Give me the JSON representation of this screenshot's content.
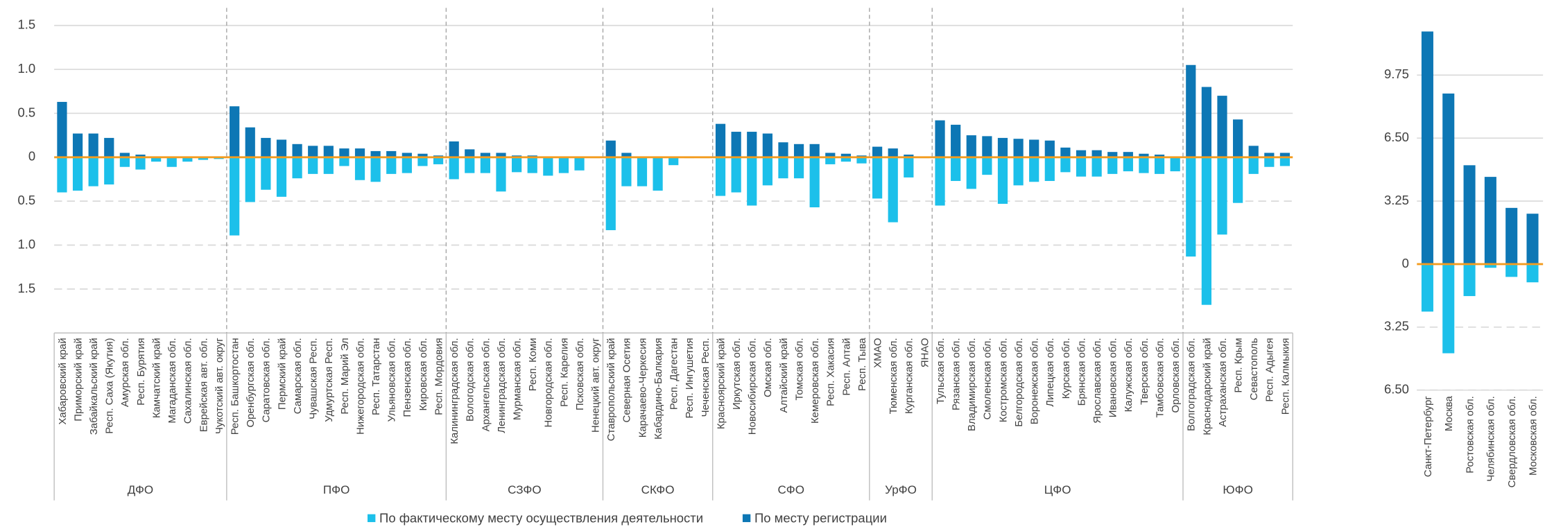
{
  "chart_data": [
    {
      "type": "bar",
      "groups": [
        {
          "label": "ДФО",
          "categories": [
            "Хабаровский край",
            "Приморский край",
            "Забайкальский край",
            "Респ. Саха (Якутия)",
            "Амурская обл.",
            "Респ. Бурятия",
            "Камчатский край",
            "Магаданская обл.",
            "Сахалинская обл.",
            "Еврейская авт. обл.",
            "Чукотский авт. округ"
          ]
        },
        {
          "label": "ПФО",
          "categories": [
            "Респ. Башкортостан",
            "Оренбургская обл.",
            "Саратовская обл.",
            "Пермский край",
            "Самарская обл.",
            "Чувашская Респ.",
            "Удмуртская Респ.",
            "Респ. Марий Эл",
            "Нижегородская обл.",
            "Респ. Татарстан",
            "Ульяновская обл.",
            "Пензенская обл.",
            "Кировская обл.",
            "Респ. Мордовия"
          ]
        },
        {
          "label": "СЗФО",
          "categories": [
            "Калининградская обл.",
            "Вологодская обл.",
            "Архангельская обл.",
            "Ленинградская обл.",
            "Мурманская обл.",
            "Респ. Коми",
            "Новгородская обл.",
            "Респ. Карелия",
            "Псковская обл.",
            "Ненецкий авт. округ"
          ]
        },
        {
          "label": "СКФО",
          "categories": [
            "Ставропольский край",
            "Северная Осетия",
            "Карачаево-Черкесия",
            "Кабардино-Балкария",
            "Респ. Дагестан",
            "Респ. Ингушетия",
            "Чеченская Респ."
          ]
        },
        {
          "label": "СФО",
          "categories": [
            "Красноярский край",
            "Иркутская обл.",
            "Новосибирская обл.",
            "Омская обл.",
            "Алтайский край",
            "Томская обл.",
            "Кемеровская обл.",
            "Респ. Хакасия",
            "Респ. Алтай",
            "Респ. Тыва"
          ]
        },
        {
          "label": "УрФО",
          "categories": [
            "ХМАО",
            "Тюменская обл.",
            "Курганская обл.",
            "ЯНАО"
          ]
        },
        {
          "label": "ЦФО",
          "categories": [
            "Тульская обл.",
            "Рязанская обл.",
            "Владимирская обл.",
            "Смоленская обл.",
            "Костромская обл.",
            "Белгородская обл.",
            "Воронежская обл.",
            "Липецкая обл.",
            "Курская обл.",
            "Брянская обл.",
            "Ярославская обл.",
            "Ивановская обл.",
            "Калужская обл.",
            "Тверская обл.",
            "Тамбовская обл.",
            "Орловская обл."
          ]
        },
        {
          "label": "ЮФО",
          "categories": [
            "Волгоградская обл.",
            "Краснодарский край",
            "Астраханская обл.",
            "Респ. Крым",
            "Севастополь",
            "Респ. Адыгея",
            "Респ. Калмыкия"
          ]
        }
      ],
      "series": [
        {
          "name": "По фактическому месту осуществления деятельности",
          "color": "#1cc0ea",
          "values": [
            [
              -0.4,
              -0.38,
              -0.33,
              -0.31,
              -0.11,
              -0.14,
              -0.05,
              -0.11,
              -0.05,
              -0.03,
              -0.02
            ],
            [
              -0.89,
              -0.51,
              -0.37,
              -0.45,
              -0.24,
              -0.19,
              -0.19,
              -0.1,
              -0.26,
              -0.28,
              -0.19,
              -0.18,
              -0.1,
              -0.08
            ],
            [
              -0.25,
              -0.18,
              -0.18,
              -0.39,
              -0.17,
              -0.18,
              -0.21,
              -0.18,
              -0.15,
              -0.01
            ],
            [
              -0.83,
              -0.33,
              -0.33,
              -0.38,
              -0.09,
              -0.01,
              -0.01
            ],
            [
              -0.44,
              -0.4,
              -0.55,
              -0.32,
              -0.24,
              -0.24,
              -0.57,
              -0.08,
              -0.05,
              -0.07
            ],
            [
              -0.47,
              -0.74,
              -0.23,
              -0.01
            ],
            [
              -0.55,
              -0.27,
              -0.36,
              -0.2,
              -0.53,
              -0.32,
              -0.28,
              -0.27,
              -0.17,
              -0.22,
              -0.22,
              -0.19,
              -0.16,
              -0.18,
              -0.19,
              -0.16
            ],
            [
              -1.13,
              -1.68,
              -0.88,
              -0.52,
              -0.19,
              -0.11,
              -0.1
            ]
          ]
        },
        {
          "name": "По месту регистрации",
          "color": "#0d77b5",
          "values": [
            [
              0.63,
              0.27,
              0.27,
              0.22,
              0.05,
              0.03,
              0.01,
              0.01,
              0.01,
              0,
              0
            ],
            [
              0.58,
              0.34,
              0.22,
              0.2,
              0.15,
              0.13,
              0.13,
              0.1,
              0.1,
              0.07,
              0.07,
              0.05,
              0.04,
              0.02
            ],
            [
              0.18,
              0.09,
              0.05,
              0.05,
              0.02,
              0.02,
              0.01,
              0.01,
              0.01,
              0
            ],
            [
              0.19,
              0.05,
              0.01,
              0.01,
              0.01,
              0,
              0
            ],
            [
              0.38,
              0.29,
              0.29,
              0.27,
              0.17,
              0.15,
              0.15,
              0.05,
              0.04,
              0.02
            ],
            [
              0.12,
              0.1,
              0.03,
              0
            ],
            [
              0.42,
              0.37,
              0.25,
              0.24,
              0.22,
              0.21,
              0.2,
              0.19,
              0.11,
              0.08,
              0.08,
              0.06,
              0.06,
              0.04,
              0.03,
              0.01
            ],
            [
              1.05,
              0.8,
              0.7,
              0.43,
              0.13,
              0.05,
              0.05
            ]
          ]
        }
      ],
      "ylim": [
        -2,
        1.7
      ],
      "yticks": [
        1.5,
        {
          "value": 1,
          "label": "1.0"
        },
        0.5,
        0,
        {
          "value": -0.5,
          "label": "0.5"
        },
        {
          "value": -1,
          "label": "1.0"
        },
        {
          "value": -1.5,
          "label": "1.5"
        }
      ],
      "grid": true,
      "zero_line_color": "#f39c1f",
      "legend": "bottom"
    },
    {
      "type": "bar",
      "categories": [
        "Санкт-Петербург",
        "Москва",
        "Ростовская обл.",
        "Челябинская обл.",
        "Свердловская обл.",
        "Московская обл."
      ],
      "series": [
        {
          "color": "#1cc0ea",
          "values": [
            -2.45,
            -4.6,
            -1.65,
            -0.19,
            -0.66,
            -0.94
          ]
        },
        {
          "color": "#0d77b5",
          "values": [
            12.0,
            8.8,
            5.1,
            4.5,
            2.9,
            2.6
          ]
        }
      ],
      "ylim": [
        -6.5,
        12.1
      ],
      "yticks": [
        9.75,
        {
          "value": 6.5,
          "label": "6.50"
        },
        3.25,
        0,
        {
          "value": -3.25,
          "label": "3.25"
        },
        {
          "value": -6.5,
          "label": "6.50"
        }
      ],
      "grid": true,
      "zero_line_color": "#f39c1f"
    }
  ]
}
